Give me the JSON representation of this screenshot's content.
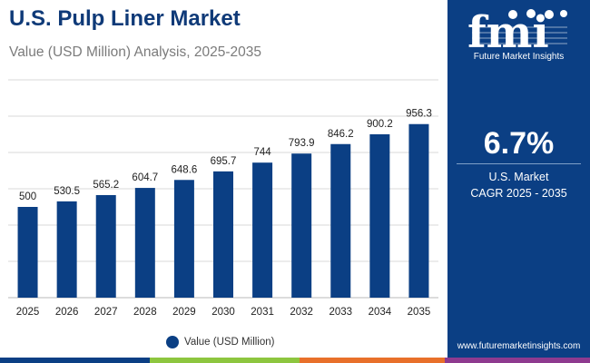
{
  "header": {
    "title": "U.S. Pulp Liner Market",
    "subtitle": "Value (USD Million) Analysis, 2025-2035"
  },
  "chart_data": {
    "type": "bar",
    "title": "U.S. Pulp Liner Market",
    "subtitle": "Value (USD Million) Analysis, 2025-2035",
    "categories": [
      "2025",
      "2026",
      "2027",
      "2028",
      "2029",
      "2030",
      "2031",
      "2032",
      "2033",
      "2034",
      "2035"
    ],
    "series": [
      {
        "name": "Value (USD Million)",
        "values": [
          500,
          530.5,
          565.2,
          604.7,
          648.6,
          695.7,
          744,
          793.9,
          846.2,
          900.2,
          956.3
        ]
      }
    ],
    "value_labels": [
      "500",
      "530.5",
      "565.2",
      "604.7",
      "648.6",
      "695.7",
      "744",
      "793.9",
      "846.2",
      "900.2",
      "956.3"
    ],
    "xlabel": "",
    "ylabel": "",
    "ylim": [
      0,
      1200
    ],
    "grid": true,
    "legend_position": "bottom"
  },
  "legend": {
    "label": "Value (USD Million)"
  },
  "sidebar": {
    "logo_text": "fmi",
    "logo_subtitle": "Future Market Insights",
    "cagr_value": "6.7%",
    "cagr_line1": "U.S. Market",
    "cagr_line2": "CAGR 2025 - 2035",
    "website": "www.futuremarketinsights.com"
  },
  "colors": {
    "bar": "#0b3f84",
    "title": "#0f3a78",
    "sidebar": "#0b3f84",
    "gridline": "#d9d9d9",
    "bottom_stripe": [
      "#0b3f84",
      "#8dc63f",
      "#e8702a",
      "#8e3a8f"
    ]
  }
}
